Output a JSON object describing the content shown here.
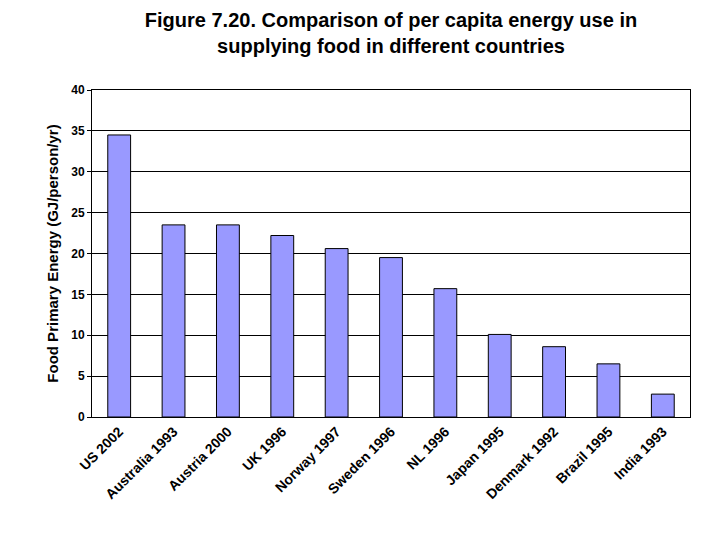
{
  "chart_data": {
    "type": "bar",
    "title": "Figure 7.20. Comparison of per capita energy use in\nsupplying food in different countries",
    "y_label": "Food Primary Energy (GJ/person/yr)",
    "categories": [
      "US 2002",
      "Australia 1993",
      "Austria 2000",
      "UK 1996",
      "Norway 1997",
      "Sweden 1996",
      "NL 1996",
      "Japan 1995",
      "Denmark 1992",
      "Brazil 1995",
      "India 1993"
    ],
    "values": [
      34.5,
      23.5,
      23.5,
      22.2,
      20.6,
      19.5,
      15.7,
      10.1,
      8.6,
      6.5,
      2.8
    ],
    "color": "#9999ff",
    "ylim": [
      0,
      40
    ],
    "yticks": [
      0,
      5,
      10,
      15,
      20,
      25,
      30,
      35,
      40
    ],
    "grid": true
  }
}
